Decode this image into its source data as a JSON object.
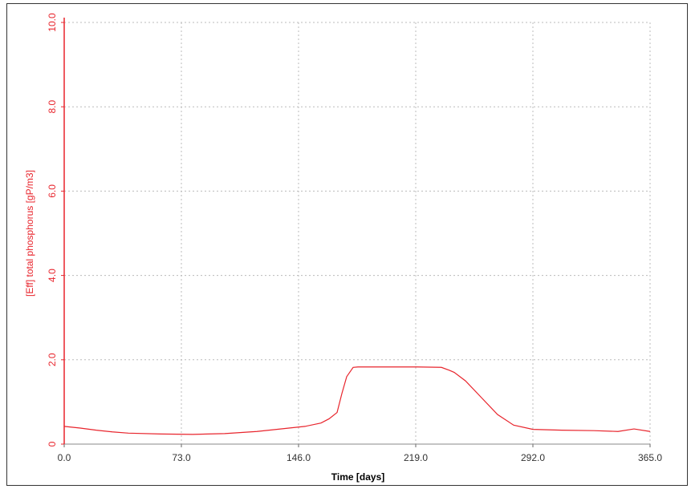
{
  "chart_data": {
    "type": "line",
    "xlabel": "Time [days]",
    "ylabel": "[Eff] total phosphorus [gP/m3]",
    "x": [
      0,
      10,
      20,
      30,
      40,
      60,
      80,
      100,
      120,
      140,
      150,
      160,
      165,
      170,
      173,
      176,
      180,
      183,
      200,
      220,
      235,
      240,
      243,
      250,
      260,
      270,
      280,
      292,
      310,
      330,
      345,
      355,
      365
    ],
    "series": [
      {
        "name": "[Eff] total phosphorus",
        "color": "#e8242c",
        "values": [
          0.42,
          0.38,
          0.33,
          0.29,
          0.26,
          0.24,
          0.23,
          0.25,
          0.3,
          0.38,
          0.42,
          0.5,
          0.6,
          0.75,
          1.2,
          1.6,
          1.82,
          1.83,
          1.83,
          1.83,
          1.82,
          1.75,
          1.7,
          1.5,
          1.1,
          0.7,
          0.45,
          0.35,
          0.33,
          0.32,
          0.3,
          0.36,
          0.3
        ]
      }
    ],
    "xlim": [
      0,
      365
    ],
    "xticks": [
      {
        "value": 0,
        "label": "0.0"
      },
      {
        "value": 73,
        "label": "73.0"
      },
      {
        "value": 146,
        "label": "146.0"
      },
      {
        "value": 219,
        "label": "219.0"
      },
      {
        "value": 292,
        "label": "292.0"
      },
      {
        "value": 365,
        "label": "365.0"
      }
    ],
    "ylim": [
      0,
      10
    ],
    "yticks": [
      0,
      {
        "value": 2,
        "label": "2.0"
      },
      {
        "value": 4,
        "label": "4.0"
      },
      {
        "value": 6,
        "label": "6.0"
      },
      {
        "value": 8,
        "label": "8.0"
      },
      {
        "value": 10,
        "label": "10.0"
      }
    ],
    "grid": true,
    "axis_color": "#e8242c"
  }
}
